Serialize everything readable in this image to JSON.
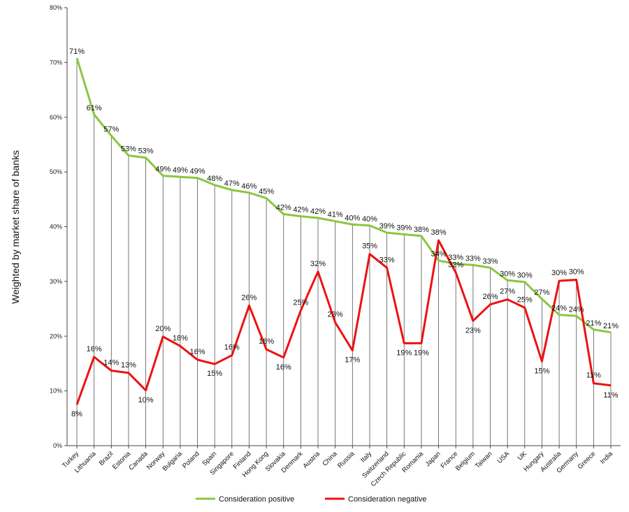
{
  "chart_data": {
    "type": "line",
    "title": "",
    "xlabel": "",
    "ylabel": "Weighted  by market share of banks",
    "ylim": [
      0,
      80
    ],
    "yticks": [
      "0%",
      "10%",
      "20%",
      "30%",
      "40%",
      "50%",
      "60%",
      "70%",
      "80%"
    ],
    "grid": "vertical lines at each category",
    "legend_position": "bottom",
    "categories": [
      "Turkey",
      "Lithuania",
      "Brazil",
      "Estonia",
      "Canada",
      "Norway",
      "Bulgaria",
      "Poland",
      "Spain",
      "Singapore",
      "Finland",
      "Hong Kong",
      "Slovakia",
      "Denmark",
      "Austria",
      "China",
      "Russia",
      "Italy",
      "Switzerland",
      "Czech Republic",
      "Romania",
      "Japan",
      "France",
      "Belgium",
      "Taiwan",
      "USA",
      "UK",
      "Hungary",
      "Australia",
      "Germany",
      "Greece",
      "India"
    ],
    "series": [
      {
        "name": "Consideration positive",
        "color": "#8cc63f",
        "values": [
          70.8,
          60.5,
          56.6,
          53.0,
          52.6,
          49.3,
          49.1,
          48.9,
          47.6,
          46.7,
          46.2,
          45.2,
          42.3,
          41.9,
          41.6,
          41.0,
          40.4,
          40.2,
          38.9,
          38.6,
          38.3,
          33.8,
          33.2,
          33.0,
          32.5,
          30.2,
          29.9,
          26.8,
          23.9,
          23.7,
          21.2,
          20.7
        ],
        "labels": [
          "71%",
          "61%",
          "57%",
          "53%",
          "53%",
          "49%",
          "49%",
          "49%",
          "48%",
          "47%",
          "46%",
          "45%",
          "42%",
          "42%",
          "42%",
          "41%",
          "40%",
          "40%",
          "39%",
          "39%",
          "38%",
          "34%",
          "33%",
          "33%",
          "33%",
          "30%",
          "30%",
          "27%",
          "24%",
          "24%",
          "21%",
          "21%"
        ]
      },
      {
        "name": "Consideration negative",
        "color": "#ee1111",
        "values": [
          7.5,
          16.2,
          13.7,
          13.3,
          10.1,
          19.9,
          18.2,
          15.7,
          14.9,
          16.5,
          25.6,
          17.6,
          16.1,
          24.7,
          31.8,
          22.5,
          17.4,
          35.0,
          32.5,
          18.7,
          18.7,
          37.5,
          31.6,
          22.8,
          25.8,
          26.7,
          25.2,
          15.4,
          30.1,
          30.3,
          11.4,
          11.0
        ],
        "labels": [
          "8%",
          "16%",
          "14%",
          "13%",
          "10%",
          "20%",
          "18%",
          "16%",
          "15%",
          "16%",
          "26%",
          "18%",
          "16%",
          "25%",
          "32%",
          "23%",
          "17%",
          "35%",
          "33%",
          "19%",
          "19%",
          "38%",
          "32%",
          "23%",
          "26%",
          "27%",
          "25%",
          "15%",
          "30%",
          "30%",
          "11%",
          "11%"
        ]
      }
    ]
  }
}
